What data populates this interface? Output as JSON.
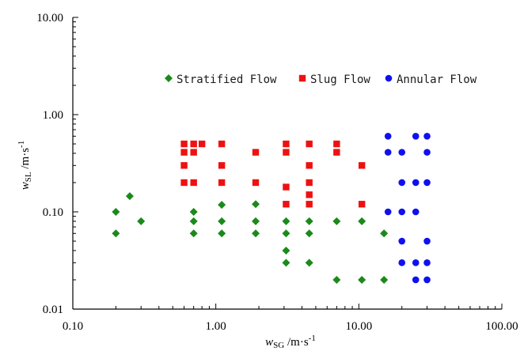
{
  "chart_data": {
    "type": "scatter",
    "x_scale": "log",
    "y_scale": "log",
    "xlim": [
      0.1,
      100
    ],
    "ylim": [
      0.01,
      10
    ],
    "x_ticks": [
      "0.10",
      "1.00",
      "10.00",
      "100.00"
    ],
    "y_ticks": [
      "0.01",
      "0.10",
      "1.00",
      "10.00"
    ],
    "xlabel": {
      "main": "w",
      "sub": "SG",
      "unit": " /m·s",
      "sup": "-1"
    },
    "ylabel": {
      "main": "w",
      "sub": "SL",
      "unit": " /m·s",
      "sup": "-1"
    },
    "legend_position": "top-right",
    "series": [
      {
        "name": "Stratified Flow",
        "marker": "diamond",
        "color": "#1a8a1a",
        "points": [
          [
            0.2,
            0.1
          ],
          [
            0.2,
            0.06
          ],
          [
            0.25,
            0.145
          ],
          [
            0.3,
            0.08
          ],
          [
            0.7,
            0.1
          ],
          [
            0.7,
            0.08
          ],
          [
            0.7,
            0.06
          ],
          [
            1.1,
            0.118
          ],
          [
            1.1,
            0.08
          ],
          [
            1.1,
            0.06
          ],
          [
            1.9,
            0.12
          ],
          [
            1.9,
            0.08
          ],
          [
            1.9,
            0.06
          ],
          [
            3.1,
            0.08
          ],
          [
            3.1,
            0.06
          ],
          [
            3.1,
            0.04
          ],
          [
            3.1,
            0.03
          ],
          [
            4.5,
            0.08
          ],
          [
            4.5,
            0.06
          ],
          [
            4.5,
            0.03
          ],
          [
            7.0,
            0.08
          ],
          [
            7.0,
            0.02
          ],
          [
            10.5,
            0.08
          ],
          [
            10.5,
            0.02
          ],
          [
            15.0,
            0.06
          ],
          [
            15.0,
            0.02
          ]
        ]
      },
      {
        "name": "Slug Flow",
        "marker": "square",
        "color": "#ee1111",
        "points": [
          [
            0.6,
            0.5
          ],
          [
            0.6,
            0.41
          ],
          [
            0.6,
            0.3
          ],
          [
            0.6,
            0.2
          ],
          [
            0.7,
            0.5
          ],
          [
            0.7,
            0.41
          ],
          [
            0.7,
            0.2
          ],
          [
            0.8,
            0.5
          ],
          [
            1.1,
            0.5
          ],
          [
            1.1,
            0.3
          ],
          [
            1.1,
            0.2
          ],
          [
            1.9,
            0.41
          ],
          [
            1.9,
            0.2
          ],
          [
            3.1,
            0.5
          ],
          [
            3.1,
            0.41
          ],
          [
            3.1,
            0.18
          ],
          [
            3.1,
            0.12
          ],
          [
            4.5,
            0.5
          ],
          [
            4.5,
            0.3
          ],
          [
            4.5,
            0.2
          ],
          [
            4.5,
            0.15
          ],
          [
            4.5,
            0.12
          ],
          [
            7.0,
            0.5
          ],
          [
            7.0,
            0.41
          ],
          [
            10.5,
            0.3
          ],
          [
            10.5,
            0.12
          ]
        ]
      },
      {
        "name": "Annular Flow",
        "marker": "circle",
        "color": "#1010ee",
        "points": [
          [
            16.0,
            0.6
          ],
          [
            16.0,
            0.41
          ],
          [
            16.0,
            0.1
          ],
          [
            20.0,
            0.41
          ],
          [
            20.0,
            0.2
          ],
          [
            20.0,
            0.1
          ],
          [
            20.0,
            0.05
          ],
          [
            20.0,
            0.03
          ],
          [
            25.0,
            0.6
          ],
          [
            25.0,
            0.2
          ],
          [
            25.0,
            0.1
          ],
          [
            25.0,
            0.03
          ],
          [
            25.0,
            0.02
          ],
          [
            30.0,
            0.6
          ],
          [
            30.0,
            0.41
          ],
          [
            30.0,
            0.2
          ],
          [
            30.0,
            0.05
          ],
          [
            30.0,
            0.03
          ],
          [
            30.0,
            0.02
          ]
        ]
      }
    ]
  }
}
